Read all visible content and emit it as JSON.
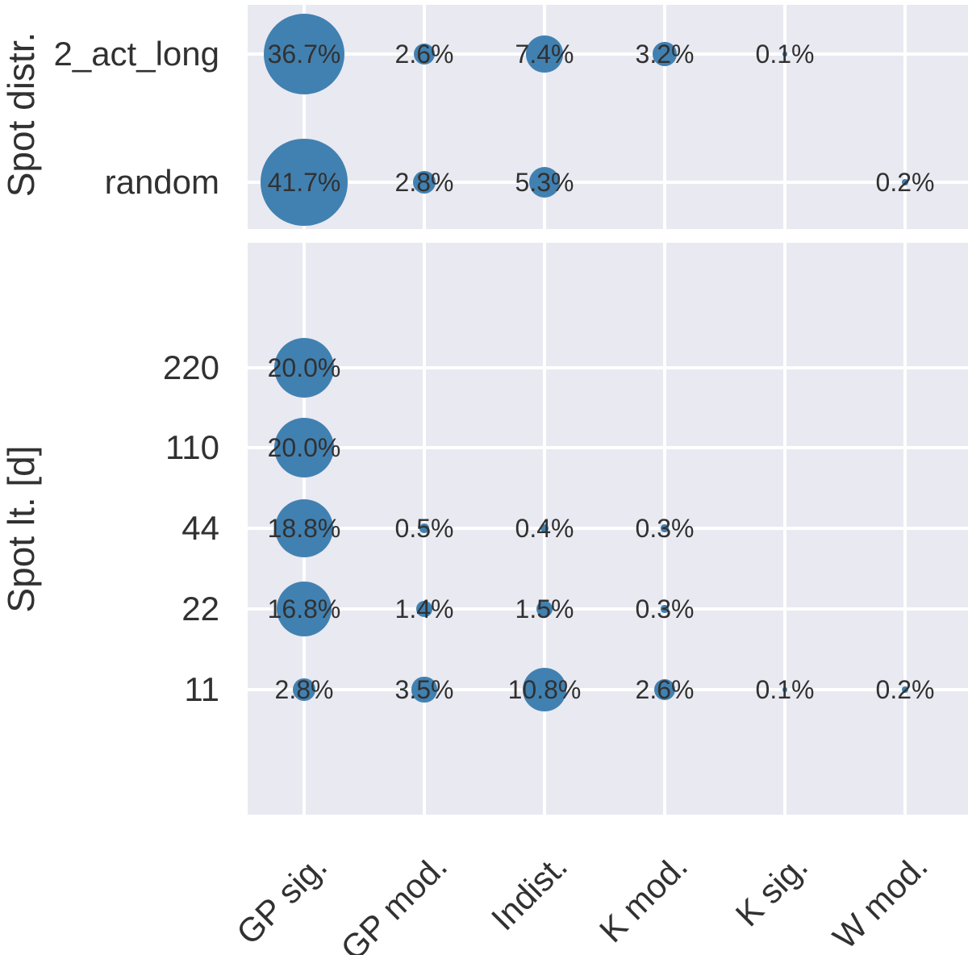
{
  "chart_data": {
    "type": "scatter",
    "subtype": "bubble-matrix",
    "title": "",
    "xlabel": "",
    "label_format": "{value:.1f}%",
    "grid": true,
    "legend": "none",
    "x_categories": [
      "GP sig.",
      "GP mod.",
      "Indist.",
      "K mod.",
      "K sig.",
      "W mod."
    ],
    "panels": [
      {
        "ylabel": "Spot distr.",
        "y_categories": [
          "2_act_long",
          "random"
        ],
        "values": [
          [
            36.7,
            2.6,
            7.4,
            3.2,
            0.1,
            null
          ],
          [
            41.7,
            2.8,
            5.3,
            null,
            null,
            0.2
          ]
        ]
      },
      {
        "ylabel": "Spot lt. [d]",
        "y_categories": [
          "220",
          "110",
          "44",
          "22",
          "11"
        ],
        "values": [
          [
            20.0,
            null,
            null,
            null,
            null,
            null
          ],
          [
            20.0,
            null,
            null,
            null,
            null,
            null
          ],
          [
            18.8,
            0.5,
            0.4,
            0.3,
            null,
            null
          ],
          [
            16.8,
            1.4,
            1.5,
            0.3,
            null,
            null
          ],
          [
            2.8,
            3.5,
            10.8,
            2.6,
            0.1,
            0.2
          ]
        ]
      }
    ],
    "colors": {
      "bubble": "#4181b1",
      "panel_bg": "#e9e9f1",
      "grid": "#ffffff",
      "text": "#313131"
    }
  }
}
